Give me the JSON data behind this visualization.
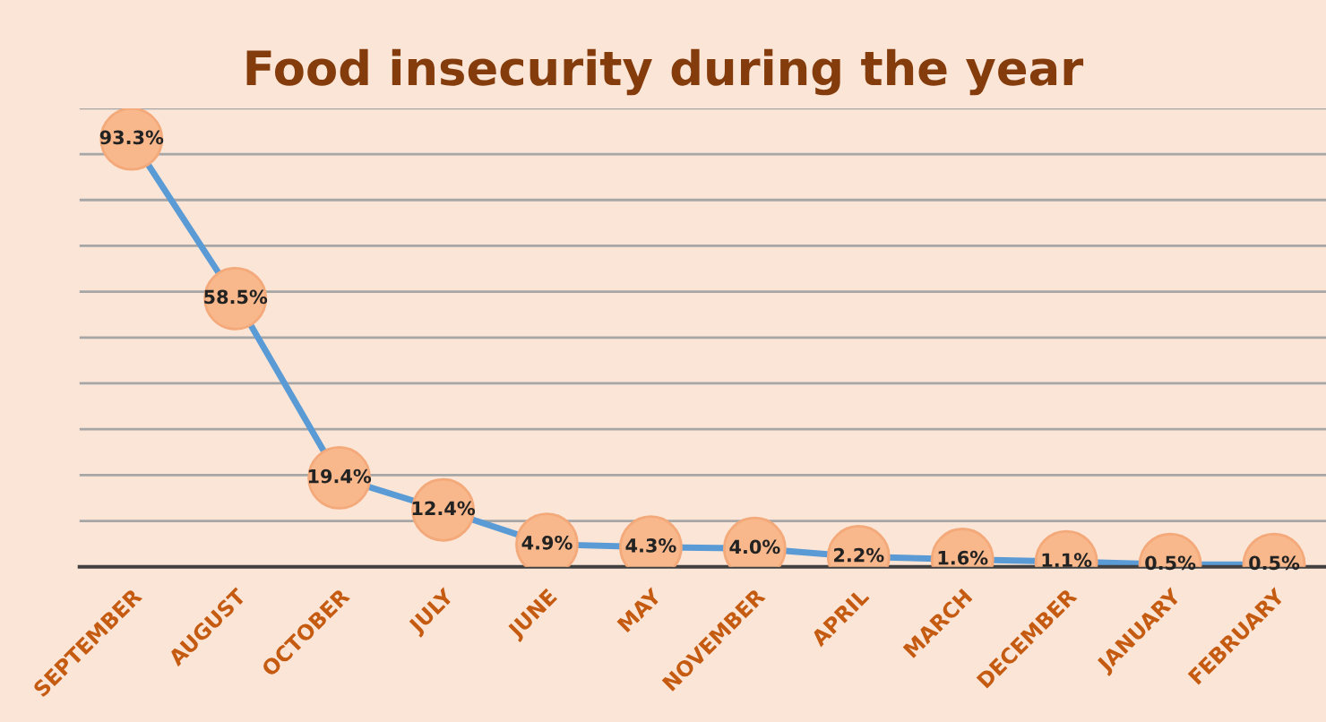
{
  "chart_data": {
    "type": "line",
    "title": "Food insecurity during the year",
    "categories": [
      "SEPTEMBER",
      "AUGUST",
      "OCTOBER",
      "JULY",
      "JUNE",
      "MAY",
      "NOVEMBER",
      "APRIL",
      "MARCH",
      "DECEMBER",
      "JANUARY",
      "FEBRUARY"
    ],
    "series": [
      {
        "color": "#5b9bd5",
        "values": [
          93.3,
          58.5,
          19.4,
          12.4,
          4.9,
          4.3,
          4.0,
          2.2,
          1.6,
          1.1,
          0.5,
          0.5
        ],
        "value_labels": [
          "93.3%",
          "58.5%",
          "19.4%",
          "12.4%",
          "4.9%",
          "4.3%",
          "4.0%",
          "2.2%",
          "1.6%",
          "1.1%",
          "0.5%",
          "0.5%"
        ]
      }
    ],
    "ylim": [
      0,
      100
    ],
    "yticks": [
      {
        "value": 0,
        "label": null
      },
      {
        "value": 10,
        "label": null
      },
      {
        "value": 20,
        "label": null
      },
      {
        "value": 30,
        "label": null
      },
      {
        "value": 40,
        "label": null
      },
      {
        "value": 50,
        "label": null
      },
      {
        "value": 60,
        "label": null
      },
      {
        "value": 70,
        "label": null
      },
      {
        "value": 80,
        "label": null
      },
      {
        "value": 90,
        "label": null
      },
      {
        "value": 100,
        "label": null
      }
    ],
    "grid": "y",
    "tick_labels": "x",
    "marker": "circle",
    "line_style": "solid"
  }
}
